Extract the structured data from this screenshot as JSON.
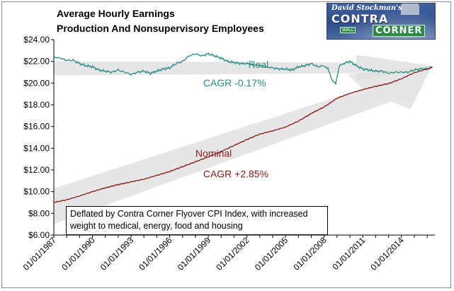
{
  "title": [
    "Average Hourly Earnings",
    "Production And Nonsupervisory Employees"
  ],
  "logo": {
    "byline": "David Stockman's",
    "word1": "CONTRA",
    "word2": "CORNER",
    "sign": "WALL"
  },
  "note": "Deflated by Contra Corner Flyover CPI Index, with increased weight to medical, energy, food and housing",
  "colors": {
    "real": "#2a8c84",
    "nominal": "#8b1a1a",
    "arrow": "#dddddd",
    "grid": "#000000"
  },
  "chart_data": {
    "type": "line",
    "title": "Average Hourly Earnings Production And Nonsupervisory Employees",
    "xlabel": "",
    "ylabel": "",
    "ylim": [
      6,
      24
    ],
    "xlim": [
      "01/01/1987",
      "01/01/2016"
    ],
    "grid": false,
    "y_ticks": [
      "$6.00",
      "$8.00",
      "$10.00",
      "$12.00",
      "$14.00",
      "$16.00",
      "$18.00",
      "$20.00",
      "$22.00",
      "$24.00"
    ],
    "y_tick_values": [
      6,
      8,
      10,
      12,
      14,
      16,
      18,
      20,
      22,
      24
    ],
    "x_ticks": [
      "01/01/1987",
      "01/01/1990",
      "01/01/1993",
      "01/01/1996",
      "01/01/1999",
      "01/01/2002",
      "01/01/2005",
      "01/01/2008",
      "01/01/2011",
      "01/01/2014"
    ],
    "x_tick_years": [
      1987,
      1990,
      1993,
      1996,
      1999,
      2002,
      2005,
      2008,
      2011,
      2014
    ],
    "annotations": [
      {
        "text": "Real",
        "color": "#2a8c84"
      },
      {
        "text": "CAGR -0.17%",
        "color": "#2a8c84"
      },
      {
        "text": "Nominal",
        "color": "#8b1a1a"
      },
      {
        "text": "CAGR +2.85%",
        "color": "#8b1a1a"
      }
    ],
    "series": [
      {
        "name": "Real",
        "color": "#2a8c84",
        "x": [
          1987,
          1987.5,
          1988,
          1988.5,
          1989,
          1989.5,
          1990,
          1990.5,
          1991,
          1991.5,
          1992,
          1992.5,
          1993,
          1993.5,
          1994,
          1994.5,
          1995,
          1995.5,
          1996,
          1996.5,
          1997,
          1997.5,
          1998,
          1998.5,
          1999,
          1999.5,
          2000,
          2000.5,
          2001,
          2001.5,
          2002,
          2002.5,
          2003,
          2003.5,
          2004,
          2004.5,
          2005,
          2005.5,
          2006,
          2006.5,
          2007,
          2007.5,
          2008,
          2008.3,
          2008.6,
          2008.9,
          2009.2,
          2009.5,
          2010,
          2010.5,
          2011,
          2011.5,
          2012,
          2012.5,
          2013,
          2013.5,
          2014,
          2014.5,
          2015,
          2015.5,
          2016,
          2016.4
        ],
        "y": [
          22.4,
          22.3,
          22.1,
          22.1,
          21.8,
          21.6,
          21.5,
          21.2,
          21.1,
          21.0,
          21.2,
          21.0,
          20.8,
          21.0,
          21.1,
          20.9,
          21.1,
          21.3,
          21.4,
          21.8,
          22.0,
          22.5,
          22.7,
          22.5,
          22.7,
          22.5,
          22.3,
          22.0,
          21.9,
          21.8,
          21.8,
          21.7,
          21.6,
          21.5,
          21.4,
          21.3,
          21.3,
          21.2,
          21.5,
          21.6,
          21.8,
          21.5,
          21.6,
          21.3,
          20.3,
          20.0,
          21.6,
          21.8,
          22.0,
          21.6,
          21.3,
          21.2,
          21.1,
          21.1,
          20.9,
          21.0,
          21.0,
          21.0,
          21.2,
          21.3,
          21.3,
          21.5
        ]
      },
      {
        "name": "Nominal",
        "color": "#8b1a1a",
        "x": [
          1987,
          1988,
          1989,
          1990,
          1991,
          1992,
          1993,
          1994,
          1995,
          1996,
          1997,
          1998,
          1999,
          2000,
          2001,
          2002,
          2003,
          2004,
          2005,
          2006,
          2007,
          2008,
          2009,
          2010,
          2011,
          2012,
          2013,
          2014,
          2015,
          2016,
          2016.4
        ],
        "y": [
          9.0,
          9.25,
          9.6,
          10.0,
          10.35,
          10.65,
          10.9,
          11.15,
          11.5,
          11.85,
          12.3,
          12.75,
          13.2,
          13.7,
          14.25,
          14.8,
          15.3,
          15.6,
          15.95,
          16.5,
          17.2,
          17.8,
          18.6,
          19.05,
          19.4,
          19.7,
          19.95,
          20.4,
          20.95,
          21.3,
          21.45
        ]
      }
    ]
  }
}
